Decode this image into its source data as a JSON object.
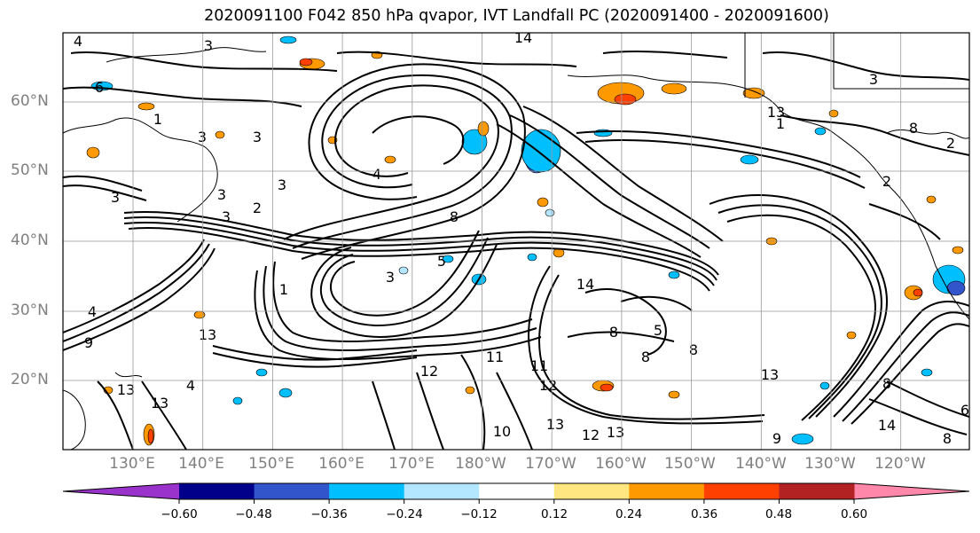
{
  "title": "2020091100 F042 850 hPa qvapor, IVT Landfall PC (2020091400 - 2020091600)",
  "map": {
    "lat_labels": [
      "60°N",
      "50°N",
      "40°N",
      "30°N",
      "20°N"
    ],
    "lon_labels": [
      "130°E",
      "140°E",
      "150°E",
      "160°E",
      "170°E",
      "180°W",
      "170°W",
      "160°W",
      "150°W",
      "140°W",
      "130°W",
      "120°W"
    ],
    "contour_labels": [
      "4",
      "6",
      "3",
      "1",
      "3",
      "3",
      "4",
      "3",
      "2",
      "1",
      "3",
      "2",
      "3",
      "8",
      "5",
      "4",
      "9",
      "13",
      "4",
      "13",
      "13",
      "12",
      "11",
      "13",
      "10",
      "12",
      "13",
      "8",
      "8",
      "5",
      "11",
      "12",
      "8",
      "8",
      "6",
      "9",
      "8",
      "14",
      "14",
      "13",
      "14",
      "13",
      "8",
      "2",
      "3",
      "1",
      "3",
      "3"
    ],
    "fill_colors": {
      "orange": "#ff9900",
      "yellow": "#ffe680",
      "red": "#ff4000",
      "cyan": "#00bfff",
      "lightblue": "#b3e6ff",
      "blue": "#3355cc",
      "darkred": "#b22222"
    }
  },
  "colorbar": {
    "tick_labels": [
      "−0.60",
      "−0.48",
      "−0.36",
      "−0.24",
      "−0.12",
      "0.12",
      "0.24",
      "0.36",
      "0.48",
      "0.60"
    ],
    "colors": [
      "#9933cc",
      "#00008b",
      "#3355cc",
      "#00bfff",
      "#b3e6ff",
      "#ffffff",
      "#ffe680",
      "#ff9900",
      "#ff4000",
      "#b22222",
      "#ff88aa"
    ]
  }
}
